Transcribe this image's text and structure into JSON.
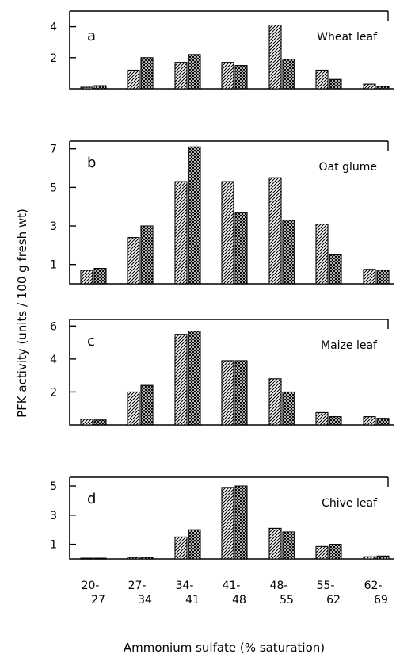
{
  "chart_data": {
    "type": "bar",
    "ylabel": "PFK activity (units / 100 g fresh wt)",
    "xlabel": "Ammonium sulfate (% saturation)",
    "categories": [
      {
        "top": "20-",
        "bottom": "27"
      },
      {
        "top": "27-",
        "bottom": "34"
      },
      {
        "top": "34-",
        "bottom": "41"
      },
      {
        "top": "41-",
        "bottom": "48"
      },
      {
        "top": "48-",
        "bottom": "55"
      },
      {
        "top": "55-",
        "bottom": "62"
      },
      {
        "top": "62-",
        "bottom": "69"
      }
    ],
    "bar_patterns": [
      "diagonal-hatch",
      "cross-hatch"
    ],
    "panels": [
      {
        "letter": "a",
        "name": "Wheat leaf",
        "ylim": [
          0,
          5
        ],
        "yticks": [
          2,
          4
        ],
        "series": [
          {
            "values": [
              0.1,
              1.2,
              1.7,
              1.7,
              4.1,
              1.2,
              0.3
            ]
          },
          {
            "values": [
              0.2,
              2.0,
              2.2,
              1.5,
              1.9,
              0.6,
              0.15
            ]
          }
        ]
      },
      {
        "letter": "b",
        "name": "Oat glume",
        "ylim": [
          0,
          7.4
        ],
        "yticks": [
          1,
          3,
          5,
          7
        ],
        "series": [
          {
            "values": [
              0.7,
              2.4,
              5.3,
              5.3,
              5.5,
              3.1,
              0.75
            ]
          },
          {
            "values": [
              0.8,
              3.0,
              7.1,
              3.7,
              3.3,
              1.5,
              0.7
            ]
          }
        ]
      },
      {
        "letter": "c",
        "name": "Maize leaf",
        "ylim": [
          0,
          6.4
        ],
        "yticks": [
          2,
          4,
          6
        ],
        "series": [
          {
            "values": [
              0.35,
              2.0,
              5.5,
              3.9,
              2.8,
              0.75,
              0.5
            ]
          },
          {
            "values": [
              0.3,
              2.4,
              5.7,
              3.9,
              2.0,
              0.5,
              0.4
            ]
          }
        ]
      },
      {
        "letter": "d",
        "name": "Chive leaf",
        "ylim": [
          0,
          5.6
        ],
        "yticks": [
          1,
          3,
          5
        ],
        "series": [
          {
            "values": [
              0.05,
              0.1,
              1.5,
              4.9,
              2.1,
              0.85,
              0.15
            ]
          },
          {
            "values": [
              0.05,
              0.1,
              2.0,
              5.0,
              1.85,
              1.0,
              0.2
            ]
          }
        ]
      }
    ]
  }
}
